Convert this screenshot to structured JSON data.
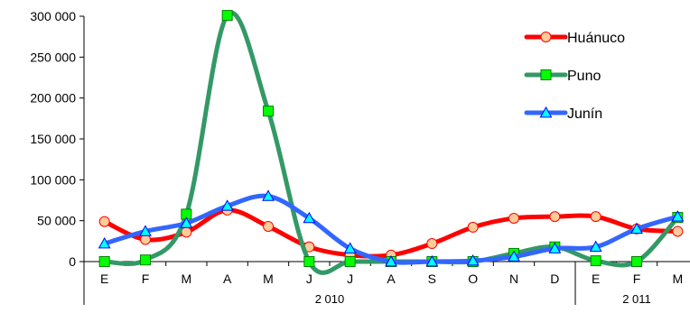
{
  "chart_data": {
    "type": "line",
    "smooth": true,
    "categories": [
      "E",
      "F",
      "M",
      "A",
      "M",
      "J",
      "J",
      "A",
      "S",
      "O",
      "N",
      "D",
      "E",
      "F",
      "M"
    ],
    "groups": [
      {
        "label": "2 010",
        "start": 0,
        "end": 11
      },
      {
        "label": "2 011",
        "start": 12,
        "end": 14
      }
    ],
    "yticks": [
      "0",
      "50 000",
      "100 000",
      "150 000",
      "200 000",
      "250 000",
      "300 000"
    ],
    "ylim": [
      0,
      300000
    ],
    "grid": false,
    "legend_position": "top-right",
    "series": [
      {
        "name": "Huánuco",
        "color": "#ff0000",
        "marker": "circle",
        "marker_fill": "#ffcc99",
        "values": [
          49000,
          27000,
          36000,
          63000,
          43000,
          18000,
          8000,
          8000,
          22000,
          42000,
          53000,
          55000,
          55000,
          40000,
          37000
        ]
      },
      {
        "name": "Puno",
        "color": "#339966",
        "marker": "square",
        "marker_fill": "#00ff00",
        "values": [
          0,
          2000,
          58000,
          301000,
          184000,
          0,
          0,
          0,
          0,
          0,
          10000,
          18000,
          1000,
          0,
          54000
        ]
      },
      {
        "name": "Junín",
        "color": "#3366ff",
        "marker": "triangle",
        "marker_fill": "#00ffff",
        "values": [
          22000,
          37000,
          47000,
          68000,
          80000,
          53000,
          16000,
          0,
          0,
          1000,
          6000,
          16000,
          18000,
          40000,
          55000
        ]
      }
    ]
  }
}
